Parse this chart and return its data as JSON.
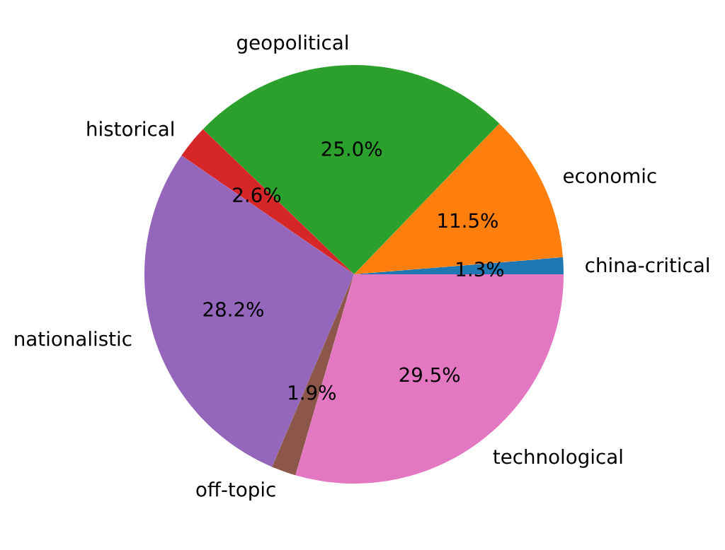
{
  "chart_data": {
    "type": "pie",
    "categories": [
      "china-critical",
      "economic",
      "geopolitical",
      "historical",
      "nationalistic",
      "off-topic",
      "technological"
    ],
    "values": [
      1.3,
      11.5,
      25.0,
      2.6,
      28.2,
      1.9,
      29.5
    ],
    "colors": [
      "#1f77b4",
      "#ff7f0e",
      "#2ca02c",
      "#d62728",
      "#9467bd",
      "#8c564b",
      "#e377c2"
    ],
    "value_labels": [
      "1.3%",
      "11.5%",
      "25.0%",
      "2.6%",
      "28.2%",
      "1.9%",
      "29.5%"
    ]
  }
}
